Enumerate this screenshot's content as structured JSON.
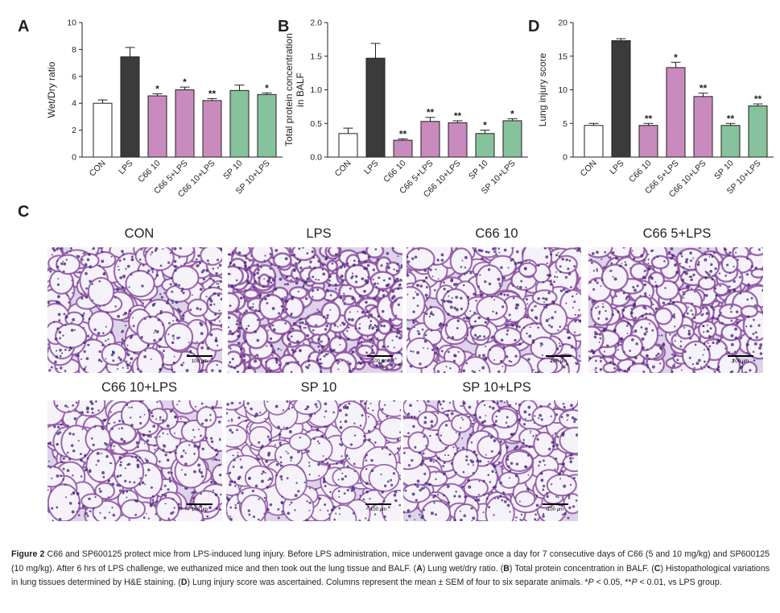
{
  "panels": {
    "A": "A",
    "B": "B",
    "C": "C",
    "D": "D"
  },
  "colors": {
    "white": "#ffffff",
    "black": "#3b3b3b",
    "pink": "#c98bbd",
    "green": "#86c29b"
  },
  "chart_data": [
    {
      "type": "bar",
      "panel": "A",
      "ylabel": "Wet/Dry ratio",
      "ylim": [
        0,
        10
      ],
      "yticks": [
        "0",
        "2",
        "4",
        "6",
        "8",
        "10"
      ],
      "categories": [
        "CON",
        "LPS",
        "C66 10",
        "C66 5+LPS",
        "C66 10+LPS",
        "SP 10",
        "SP 10+LPS"
      ],
      "values": [
        4.0,
        7.45,
        4.55,
        5.0,
        4.2,
        4.95,
        4.65
      ],
      "errors": [
        0.25,
        0.7,
        0.15,
        0.2,
        0.15,
        0.4,
        0.12
      ],
      "colors": [
        "white",
        "black",
        "pink",
        "pink",
        "pink",
        "green",
        "green"
      ],
      "sig": [
        "",
        "",
        "*",
        "*",
        "**",
        "",
        "*"
      ]
    },
    {
      "type": "bar",
      "panel": "B",
      "ylabel": "Total protein concentration in BALF",
      "ylabel_lines": [
        "Total protein concentration",
        "in BALF"
      ],
      "ylim": [
        0,
        2.0
      ],
      "yticks": [
        "0.0",
        "0.5",
        "1.0",
        "1.5",
        "2.0"
      ],
      "categories": [
        "CON",
        "LPS",
        "C66 10",
        "C66 5+LPS",
        "C66 10+LPS",
        "SP 10",
        "SP 10+LPS"
      ],
      "values": [
        0.35,
        1.47,
        0.25,
        0.53,
        0.51,
        0.35,
        0.54
      ],
      "errors": [
        0.08,
        0.22,
        0.02,
        0.06,
        0.03,
        0.05,
        0.03
      ],
      "colors": [
        "white",
        "black",
        "pink",
        "pink",
        "pink",
        "green",
        "green"
      ],
      "sig": [
        "",
        "",
        "**",
        "**",
        "**",
        "*",
        "*"
      ]
    },
    {
      "type": "bar",
      "panel": "D",
      "ylabel": "Lung injury score",
      "ylim": [
        0,
        20
      ],
      "yticks": [
        "0",
        "5",
        "10",
        "15",
        "20"
      ],
      "categories": [
        "CON",
        "LPS",
        "C66 10",
        "C66 5+LPS",
        "C66 10+LPS",
        "SP 10",
        "SP 10+LPS"
      ],
      "values": [
        4.7,
        17.3,
        4.7,
        13.3,
        9.0,
        4.7,
        7.6
      ],
      "errors": [
        0.3,
        0.3,
        0.3,
        0.8,
        0.5,
        0.3,
        0.3
      ],
      "colors": [
        "white",
        "black",
        "pink",
        "pink",
        "pink",
        "green",
        "green"
      ],
      "sig": [
        "",
        "",
        "**",
        "*",
        "**",
        "**",
        "**"
      ]
    }
  ],
  "histology": {
    "images": [
      {
        "title": "CON",
        "scale": "100 μm",
        "density": 0.55
      },
      {
        "title": "LPS",
        "scale": "100 μm",
        "density": 0.85
      },
      {
        "title": "C66 10",
        "scale": "100 μm",
        "density": 0.55
      },
      {
        "title": "C66 5+LPS",
        "scale": "100 μm",
        "density": 0.7
      },
      {
        "title": "C66 10+LPS",
        "scale": "100 μm",
        "density": 0.5
      },
      {
        "title": "SP 10",
        "scale": "100 μm",
        "density": 0.35
      },
      {
        "title": "SP 10+LPS",
        "scale": "100 μm",
        "density": 0.5
      }
    ]
  },
  "caption": {
    "fig_label": "Figure 2",
    "s1": " C66 and SP600125 protect mice from LPS-induced lung injury. Before LPS administration, mice underwent gavage once a day for 7 consecutive days of C66 (5 and 10 mg/kg) and SP600125 (10 mg/kg). After 6 hrs of LPS challenge, we euthanized mice and then took out the lung tissue and BALF. (",
    "A": "A",
    "s2": ") Lung wet/dry ratio. (",
    "B": "B",
    "s3": ") Total protein concentration in BALF. (",
    "C": "C",
    "s4": ") Histopathological variations in lung tissues determined by H&E staining. (",
    "D": "D",
    "s5": ") Lung injury score was ascertained. Columns represent the mean ± SEM of four to six separate animals. *",
    "p1": "P",
    "s6": " < 0.05, **",
    "p2": "P",
    "s7": " < 0.01, vs LPS group."
  }
}
